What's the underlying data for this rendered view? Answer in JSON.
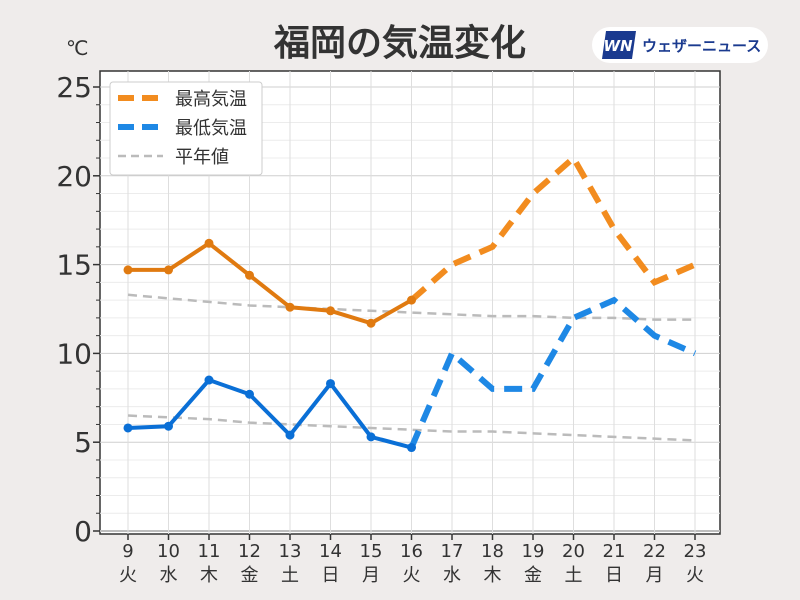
{
  "title": "福岡の気温変化",
  "unit": "℃",
  "brand": {
    "name": "ウェザーニュース",
    "logo_icon": "weathernews-logo-icon",
    "logo_color": "#1a3a8f"
  },
  "chart_data": {
    "type": "line",
    "title": "福岡の気温変化",
    "ylabel": "℃",
    "ylim": [
      0,
      25
    ],
    "yticks": [
      0,
      5,
      10,
      15,
      20,
      25
    ],
    "grid": true,
    "legend_position": "top-left",
    "x": [
      "9",
      "10",
      "11",
      "12",
      "13",
      "14",
      "15",
      "16",
      "17",
      "18",
      "19",
      "20",
      "21",
      "22",
      "23"
    ],
    "weekday": [
      "火",
      "水",
      "木",
      "金",
      "土",
      "日",
      "月",
      "火",
      "水",
      "木",
      "金",
      "土",
      "日",
      "月",
      "火"
    ],
    "weekday_colors": {
      "土": "#1e88e5",
      "日": "#e53935",
      "default": "#333333"
    },
    "series": [
      {
        "name": "最高気温",
        "color_observed": "#e07a10",
        "color_forecast": "#f28c1f",
        "observed_through_index": 7,
        "values": [
          14.7,
          14.7,
          16.2,
          14.4,
          12.6,
          12.4,
          11.7,
          13.0,
          15.0,
          16.0,
          19.0,
          21.0,
          17.0,
          14.0,
          15.0
        ]
      },
      {
        "name": "最低気温",
        "color_observed": "#0a6fd6",
        "color_forecast": "#1e88e5",
        "observed_through_index": 7,
        "values": [
          5.8,
          5.9,
          8.5,
          7.7,
          5.4,
          8.3,
          5.3,
          4.7,
          10.0,
          8.0,
          8.0,
          12.0,
          13.0,
          11.0,
          10.0
        ]
      },
      {
        "name": "平年値",
        "color": "#bbbbbb",
        "upper": [
          13.3,
          13.1,
          12.9,
          12.7,
          12.6,
          12.5,
          12.4,
          12.3,
          12.2,
          12.1,
          12.1,
          12.0,
          12.0,
          11.9,
          11.9
        ],
        "lower": [
          6.5,
          6.4,
          6.3,
          6.1,
          6.0,
          5.9,
          5.8,
          5.7,
          5.6,
          5.6,
          5.5,
          5.4,
          5.3,
          5.2,
          5.1
        ]
      }
    ]
  }
}
